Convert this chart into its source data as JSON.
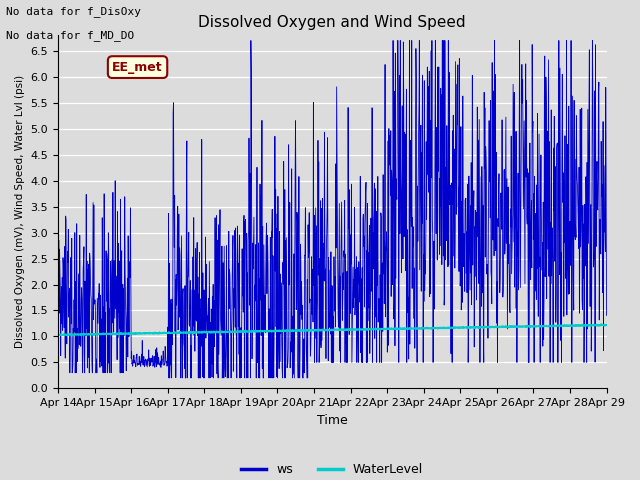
{
  "title": "Dissolved Oxygen and Wind Speed",
  "ylabel": "Dissolved Oxygen (mV), Wind Speed, Water Lvl (psi)",
  "xlabel": "Time",
  "ylim": [
    0.0,
    6.8
  ],
  "yticks": [
    0.0,
    0.5,
    1.0,
    1.5,
    2.0,
    2.5,
    3.0,
    3.5,
    4.0,
    4.5,
    5.0,
    5.5,
    6.0,
    6.5
  ],
  "annotation1": "No data for f_DisOxy",
  "annotation2": "No data for f_MD_DO",
  "label_box_text": "EE_met",
  "ws_color": "#0000CD",
  "water_color": "#00CCCC",
  "background_color": "#DCDCDC",
  "fig_color": "#DCDCDC",
  "xtick_labels": [
    "Apr 14",
    "Apr 15",
    "Apr 16",
    "Apr 17",
    "Apr 18",
    "Apr 19",
    "Apr 20",
    "Apr 21",
    "Apr 22",
    "Apr 23",
    "Apr 24",
    "Apr 25",
    "Apr 26",
    "Apr 27",
    "Apr 28",
    "Apr 29"
  ],
  "legend_ws": "ws",
  "legend_water": "WaterLevel",
  "title_fontsize": 11,
  "ylabel_fontsize": 7.5,
  "xlabel_fontsize": 9,
  "tick_fontsize": 8,
  "annot_fontsize": 8,
  "legend_fontsize": 9
}
